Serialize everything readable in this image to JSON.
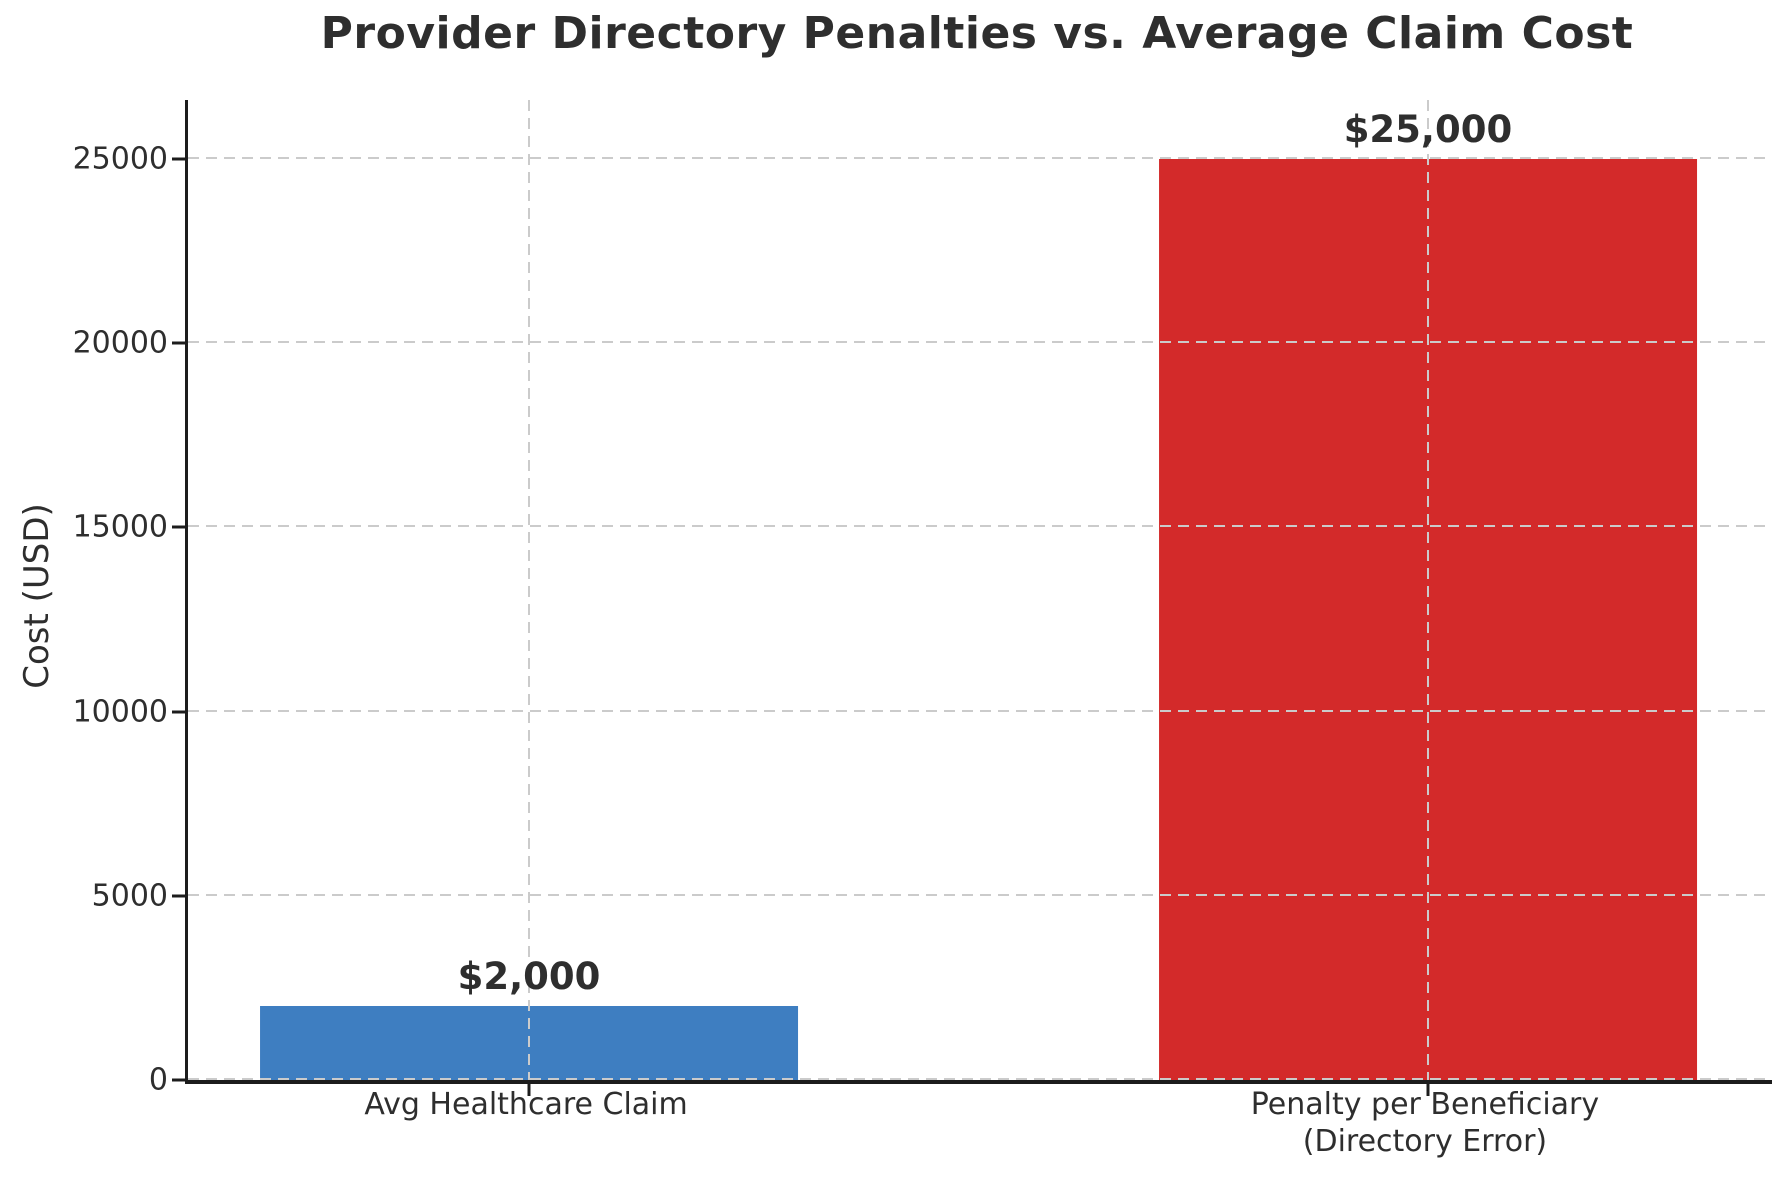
{
  "chart_data": {
    "type": "bar",
    "title": "Provider Directory Penalties vs. Average Claim Cost",
    "ylabel": "Cost (USD)",
    "xlabel": "",
    "categories": [
      [
        "Avg Healthcare Claim"
      ],
      [
        "Penalty per Beneficiary",
        "(Directory Error)"
      ]
    ],
    "values": [
      2000,
      25000
    ],
    "value_labels": [
      "$2,000",
      "$25,000"
    ],
    "bar_colors": [
      "#3E7EC1",
      "#D32A2A"
    ],
    "yticks": [
      0,
      5000,
      10000,
      15000,
      20000,
      25000
    ],
    "ytick_labels": [
      "0",
      "5000",
      "10000",
      "15000",
      "20000",
      "25000"
    ],
    "ylim": [
      0,
      26600
    ],
    "grid": true,
    "grid_style": "dashed",
    "legend_position": "none"
  },
  "colors": {
    "bar_blue": "#3E7EC1",
    "bar_red": "#D32A2A",
    "grid": "#CBCBCB",
    "text": "#2E2E2E",
    "spine": "#1C1C1C",
    "background": "#FFFFFF"
  }
}
